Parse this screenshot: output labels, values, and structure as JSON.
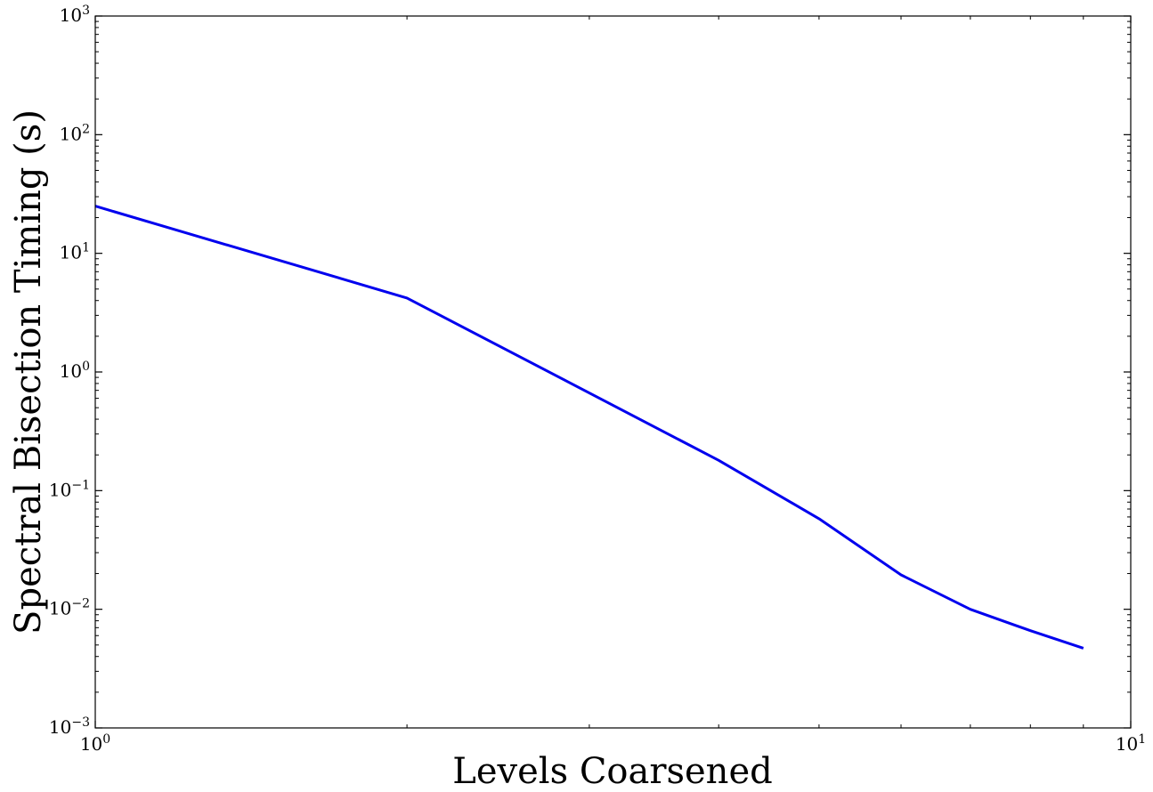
{
  "chart_data": {
    "type": "line",
    "xscale": "log",
    "yscale": "log",
    "xlim": [
      1,
      10
    ],
    "ylim": [
      0.001,
      1000
    ],
    "xlabel": "Levels Coarsened",
    "ylabel": "Spectral Bisection Timing (s)",
    "x_ticks": [
      {
        "value": 1,
        "base": "10",
        "exp": "0"
      },
      {
        "value": 10,
        "base": "10",
        "exp": "1"
      }
    ],
    "y_ticks": [
      {
        "value": 0.001,
        "base": "10",
        "exp": "−3"
      },
      {
        "value": 0.01,
        "base": "10",
        "exp": "−2"
      },
      {
        "value": 0.1,
        "base": "10",
        "exp": "−1"
      },
      {
        "value": 1,
        "base": "10",
        "exp": "0"
      },
      {
        "value": 10,
        "base": "10",
        "exp": "1"
      },
      {
        "value": 100,
        "base": "10",
        "exp": "2"
      },
      {
        "value": 1000,
        "base": "10",
        "exp": "3"
      }
    ],
    "series": [
      {
        "color": "#0000ee",
        "x": [
          1,
          2,
          4,
          5,
          6,
          7,
          8,
          9
        ],
        "y": [
          25,
          4.2,
          0.18,
          0.058,
          0.0195,
          0.01,
          0.0066,
          0.0047
        ]
      }
    ],
    "grid": false,
    "legend": "none"
  }
}
